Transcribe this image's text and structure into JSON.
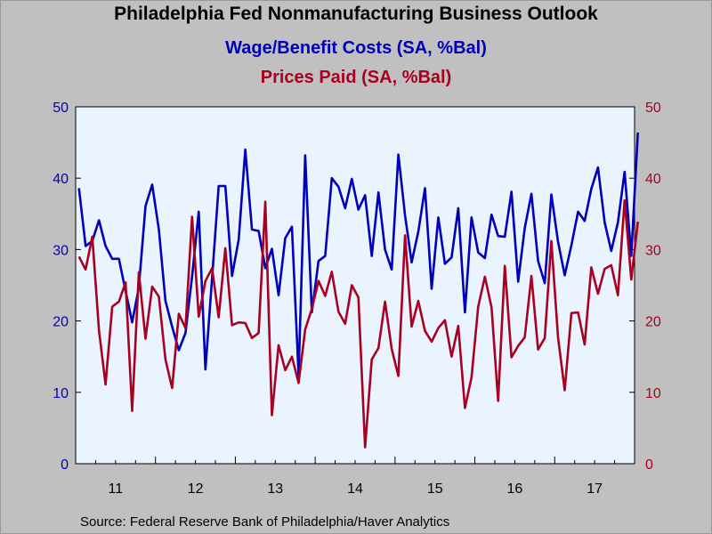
{
  "title": "Philadelphia Fed Nonmanufacturing Business Outlook",
  "source": "Source:  Federal Reserve Bank of Philadelphia/Haver Analytics",
  "chart_data": {
    "type": "line",
    "subtitles": [
      "Wage/Benefit Costs (SA, %Bal)",
      "Prices Paid (SA, %Bal)"
    ],
    "ylim": [
      0,
      50
    ],
    "y_ticks": [
      "0",
      "10",
      "20",
      "30",
      "40",
      "50"
    ],
    "x_tick_labels": [
      "11",
      "12",
      "13",
      "14",
      "15",
      "16",
      "17"
    ],
    "x_start": "2011-01",
    "grid": false,
    "background": "#eaf4ff",
    "series": [
      {
        "name": "Wage/Benefit Costs (SA, %Bal)",
        "color": "#0000b8",
        "axis": "left",
        "values": [
          38.6,
          30.5,
          31.2,
          34.1,
          30.5,
          28.7,
          28.7,
          24.2,
          19.8,
          24.7,
          36.1,
          39.1,
          32.8,
          22.8,
          19.2,
          15.9,
          18.3,
          26.2,
          35.3,
          13.2,
          26.0,
          38.9,
          38.9,
          26.3,
          31.4,
          44.0,
          32.8,
          32.6,
          27.4,
          30.1,
          23.6,
          31.6,
          33.2,
          12.4,
          43.2,
          21.2,
          28.4,
          29.1,
          40.0,
          38.8,
          35.8,
          39.9,
          35.6,
          37.6,
          29.1,
          38.0,
          30.0,
          27.2,
          43.3,
          34.8,
          28.2,
          32.5,
          38.6,
          24.5,
          34.5,
          28.0,
          28.9,
          35.8,
          21.2,
          34.5,
          29.6,
          28.8,
          34.9,
          31.9,
          31.8,
          38.1,
          25.5,
          33.0,
          37.8,
          28.4,
          25.3,
          37.7,
          31.1,
          26.4,
          30.6,
          35.3,
          34.0,
          38.5,
          41.5,
          33.8,
          29.8,
          33.8,
          40.9,
          29.1,
          46.4
        ]
      },
      {
        "name": "Prices Paid (SA, %Bal)",
        "color": "#a80020",
        "axis": "right",
        "values": [
          29.0,
          27.2,
          31.8,
          18.7,
          11.1,
          22.0,
          22.7,
          25.4,
          7.4,
          26.8,
          17.5,
          24.8,
          23.4,
          14.6,
          10.6,
          21.0,
          19.0,
          34.6,
          20.6,
          25.6,
          27.4,
          20.5,
          30.2,
          19.4,
          19.8,
          19.7,
          17.6,
          18.3,
          36.7,
          6.8,
          16.6,
          13.1,
          15.0,
          11.3,
          18.8,
          21.7,
          25.6,
          23.5,
          26.9,
          21.3,
          19.6,
          25.0,
          23.3,
          2.3,
          14.6,
          16.2,
          22.7,
          16.1,
          12.3,
          32.0,
          19.2,
          22.8,
          18.6,
          17.1,
          19.0,
          20.1,
          15.0,
          19.3,
          7.8,
          12.1,
          22.0,
          26.2,
          21.9,
          8.8,
          27.7,
          14.9,
          16.5,
          17.7,
          26.3,
          16.0,
          17.6,
          31.2,
          17.7,
          10.3,
          21.1,
          21.2,
          16.7,
          27.5,
          23.8,
          27.3,
          27.8,
          23.6,
          36.9,
          25.8,
          33.9
        ]
      }
    ]
  }
}
